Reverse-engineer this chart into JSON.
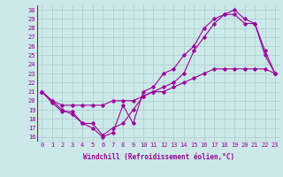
{
  "xlabel": "Windchill (Refroidissement éolien,°C)",
  "background_color": "#cce8e8",
  "line_color": "#990099",
  "xlim": [
    -0.5,
    23.5
  ],
  "ylim": [
    15.5,
    30.5
  ],
  "yticks": [
    16,
    17,
    18,
    19,
    20,
    21,
    22,
    23,
    24,
    25,
    26,
    27,
    28,
    29,
    30
  ],
  "xticks": [
    0,
    1,
    2,
    3,
    4,
    5,
    6,
    7,
    8,
    9,
    10,
    11,
    12,
    13,
    14,
    15,
    16,
    17,
    18,
    19,
    20,
    21,
    22,
    23
  ],
  "line1_x": [
    0,
    1,
    2,
    3,
    4,
    5,
    6,
    7,
    8,
    9,
    10,
    11,
    12,
    13,
    14,
    15,
    16,
    17,
    18,
    19,
    20,
    21,
    22,
    23
  ],
  "line1_y": [
    21,
    20,
    19,
    18.5,
    17.5,
    17,
    16,
    16.5,
    19.5,
    17.5,
    21,
    21.5,
    23,
    23.5,
    25,
    26,
    28,
    29,
    29.5,
    30,
    29,
    28.5,
    25,
    23
  ],
  "line2_x": [
    0,
    1,
    2,
    3,
    4,
    5,
    6,
    7,
    8,
    9,
    10,
    11,
    12,
    13,
    14,
    15,
    16,
    17,
    18,
    19,
    20,
    21,
    22,
    23
  ],
  "line2_y": [
    21,
    19.8,
    18.8,
    18.8,
    17.5,
    17.5,
    16.2,
    17,
    17.5,
    19,
    20.5,
    21,
    21.5,
    22,
    23,
    25.5,
    27,
    28.5,
    29.5,
    29.5,
    28.5,
    28.5,
    25.5,
    23
  ],
  "line3_x": [
    0,
    1,
    2,
    3,
    4,
    5,
    6,
    7,
    8,
    9,
    10,
    11,
    12,
    13,
    14,
    15,
    16,
    17,
    18,
    19,
    20,
    21,
    22,
    23
  ],
  "line3_y": [
    21,
    20,
    19.5,
    19.5,
    19.5,
    19.5,
    19.5,
    20,
    20,
    20,
    20.5,
    21,
    21,
    21.5,
    22,
    22.5,
    23,
    23.5,
    23.5,
    23.5,
    23.5,
    23.5,
    23.5,
    23
  ],
  "grid_color": "#aacccc",
  "tick_fontsize": 5,
  "xlabel_fontsize": 5.5
}
